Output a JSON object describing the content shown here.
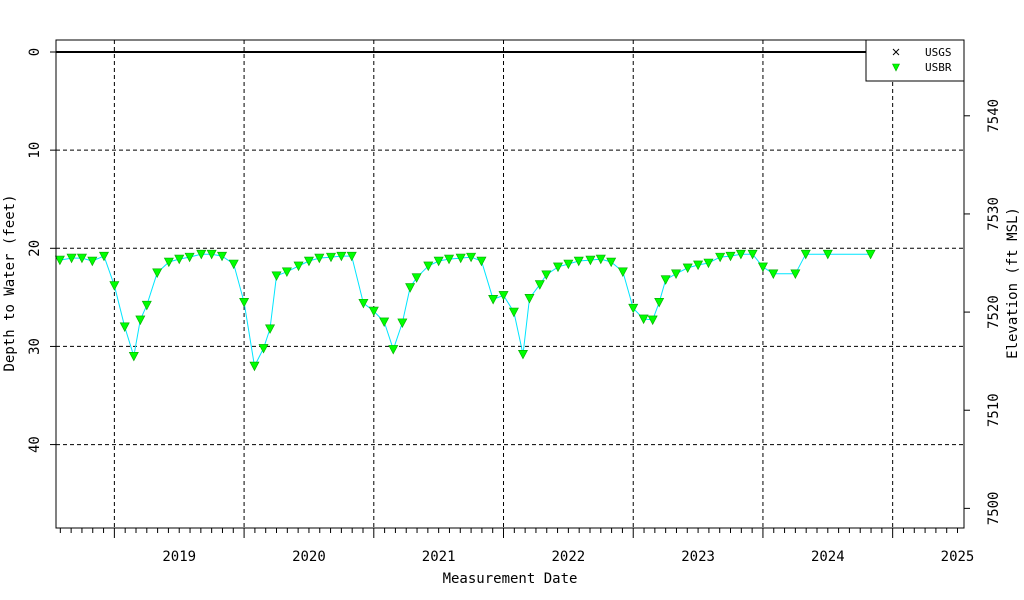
{
  "chart_data": {
    "type": "line",
    "title": "",
    "xlabel": "Measurement Date",
    "ylabel": "Depth to Water (feet)",
    "y2label": "Elevation (ft MSL)",
    "ylim": [
      0,
      48.5
    ],
    "y_inverted": true,
    "y2lim": [
      7546.5,
      7498
    ],
    "xlim": [
      2018.55,
      2025.55
    ],
    "x_major_labels": [
      "2019",
      "2020",
      "2021",
      "2022",
      "2023",
      "2024",
      "2025"
    ],
    "y_ticks": [
      "0",
      "10",
      "20",
      "30",
      "40"
    ],
    "y2_ticks": [
      "7500",
      "7510",
      "7520",
      "7530",
      "7540"
    ],
    "grid": true,
    "reference_line_depth": 0,
    "legend": {
      "placement": "top-right",
      "entries": [
        {
          "name": "USGS",
          "marker": "x",
          "color": "#000000"
        },
        {
          "name": "USBR",
          "marker": "triangle-down",
          "color": "#00ff00"
        }
      ]
    },
    "series": [
      {
        "name": "USBR",
        "line_color": "#00e5ff",
        "marker_color": "#00ff00",
        "x": [
          2018.58,
          2018.67,
          2018.75,
          2018.83,
          2018.92,
          2019.0,
          2019.08,
          2019.15,
          2019.2,
          2019.25,
          2019.33,
          2019.42,
          2019.5,
          2019.58,
          2019.67,
          2019.75,
          2019.83,
          2019.92,
          2020.0,
          2020.08,
          2020.15,
          2020.2,
          2020.25,
          2020.33,
          2020.42,
          2020.5,
          2020.58,
          2020.67,
          2020.75,
          2020.83,
          2020.92,
          2021.0,
          2021.08,
          2021.15,
          2021.22,
          2021.28,
          2021.33,
          2021.42,
          2021.5,
          2021.58,
          2021.67,
          2021.75,
          2021.83,
          2021.92,
          2022.0,
          2022.08,
          2022.15,
          2022.2,
          2022.28,
          2022.33,
          2022.42,
          2022.5,
          2022.58,
          2022.67,
          2022.75,
          2022.83,
          2022.92,
          2023.0,
          2023.08,
          2023.15,
          2023.2,
          2023.25,
          2023.33,
          2023.42,
          2023.5,
          2023.58,
          2023.67,
          2023.75,
          2023.83,
          2023.92,
          2024.0,
          2024.08,
          2024.25,
          2024.33,
          2024.5,
          2024.83
        ],
        "y": [
          21.2,
          21.0,
          21.0,
          21.3,
          20.8,
          23.8,
          28.0,
          31.0,
          27.3,
          25.8,
          22.5,
          21.4,
          21.1,
          20.9,
          20.6,
          20.6,
          20.8,
          21.6,
          25.5,
          32.0,
          30.2,
          28.2,
          22.8,
          22.4,
          21.8,
          21.3,
          21.0,
          20.9,
          20.8,
          20.8,
          25.6,
          26.4,
          27.5,
          30.3,
          27.6,
          24.0,
          23.0,
          21.8,
          21.3,
          21.1,
          21.0,
          20.9,
          21.3,
          25.2,
          24.8,
          26.5,
          30.8,
          25.1,
          23.7,
          22.7,
          21.9,
          21.6,
          21.3,
          21.2,
          21.1,
          21.4,
          22.4,
          26.1,
          27.2,
          27.3,
          25.5,
          23.2,
          22.6,
          22.0,
          21.7,
          21.5,
          20.9,
          20.8,
          20.6,
          20.6,
          21.9,
          22.6,
          22.6,
          20.6,
          20.6,
          20.6
        ]
      }
    ]
  }
}
